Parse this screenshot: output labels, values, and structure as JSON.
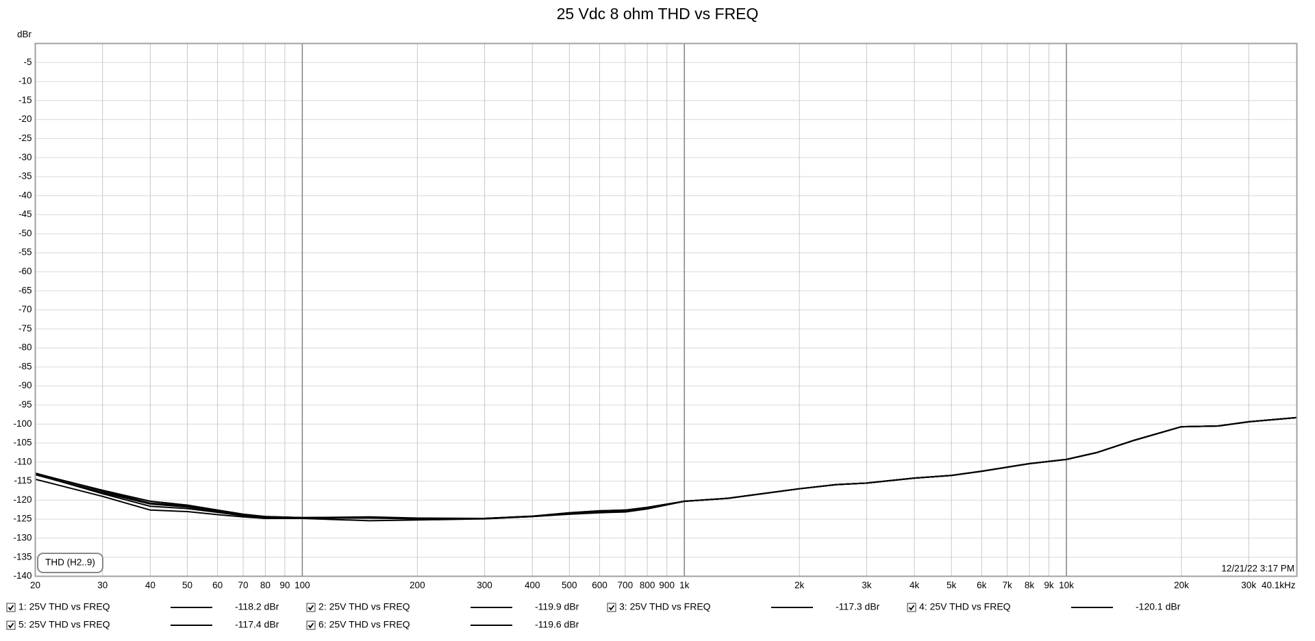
{
  "chart_data": {
    "type": "line",
    "title": "25 Vdc 8 ohm THD vs FREQ",
    "y_label": "dBr",
    "annotation": "THD (H2..9)",
    "timestamp": "12/21/22 3:17 PM",
    "x_scale": "log",
    "grid": true,
    "xlim": [
      20,
      40100
    ],
    "ylim": [
      -140,
      0
    ],
    "xticks": [
      20,
      30,
      40,
      50,
      60,
      70,
      80,
      90,
      100,
      200,
      300,
      400,
      500,
      600,
      700,
      800,
      900,
      {
        "value": 1000,
        "label": "1k"
      },
      {
        "value": 2000,
        "label": "2k"
      },
      {
        "value": 3000,
        "label": "3k"
      },
      {
        "value": 4000,
        "label": "4k"
      },
      {
        "value": 5000,
        "label": "5k"
      },
      {
        "value": 6000,
        "label": "6k"
      },
      {
        "value": 7000,
        "label": "7k"
      },
      {
        "value": 8000,
        "label": "8k"
      },
      {
        "value": 9000,
        "label": "9k"
      },
      {
        "value": 10000,
        "label": "10k"
      },
      {
        "value": 20000,
        "label": "20k"
      },
      {
        "value": 30000,
        "label": "30k"
      },
      {
        "value": 40100,
        "label": "40.1kHz"
      }
    ],
    "yticks": [
      -5,
      -10,
      -15,
      -20,
      -25,
      -30,
      -35,
      -40,
      -45,
      -50,
      -55,
      -60,
      -65,
      -70,
      -75,
      -80,
      -85,
      -90,
      -95,
      -100,
      -105,
      -110,
      -115,
      -120,
      -125,
      -130,
      -135,
      -140
    ],
    "x": [
      20,
      30,
      40,
      50,
      60,
      70,
      80,
      100,
      150,
      200,
      300,
      400,
      500,
      600,
      700,
      800,
      1000,
      1300,
      2000,
      2500,
      3000,
      4000,
      5000,
      6000,
      8000,
      10000,
      12000,
      15000,
      20000,
      25000,
      30000,
      40100
    ],
    "series": [
      {
        "name": "1: 25V THD vs FREQ",
        "readout": "-118.2 dBr",
        "color": "#000000",
        "values": [
          -113,
          -117.4,
          -120.3,
          -121.3,
          -122.6,
          -123.7,
          -124.3,
          -124.6,
          -124.5,
          -124.8,
          -124.8,
          -124.2,
          -123.3,
          -122.8,
          -122.6,
          -121.9,
          -120.3,
          -119.5,
          -117,
          -115.9,
          -115.5,
          -114.2,
          -113.5,
          -112.4,
          -110.4,
          -109.3,
          -107.5,
          -104.3,
          -100.7,
          -100.5,
          -99.4,
          -98.3
        ]
      },
      {
        "name": "2: 25V THD vs FREQ",
        "readout": "-119.9 dBr",
        "color": "#000000",
        "values": [
          -113.3,
          -118,
          -121,
          -121.8,
          -123,
          -124,
          -124.5,
          -124.7,
          -124.7,
          -124.9,
          -124.8,
          -124.3,
          -123.5,
          -123,
          -122.8,
          -122,
          -120.3,
          -119.5,
          -117,
          -115.9,
          -115.5,
          -114.2,
          -113.5,
          -112.4,
          -110.4,
          -109.3,
          -107.5,
          -104.3,
          -100.7,
          -100.5,
          -99.4,
          -98.3
        ]
      },
      {
        "name": "3: 25V THD vs FREQ",
        "readout": "-117.3 dBr",
        "color": "#000000",
        "values": [
          -114.5,
          -119,
          -122.6,
          -123,
          -123.8,
          -124.4,
          -124.8,
          -124.8,
          -125.4,
          -125.2,
          -124.9,
          -124.3,
          -123.6,
          -123.2,
          -123,
          -122.2,
          -120.3,
          -119.5,
          -117,
          -115.9,
          -115.5,
          -114.2,
          -113.5,
          -112.4,
          -110.4,
          -109.3,
          -107.5,
          -104.3,
          -100.7,
          -100.5,
          -99.4,
          -98.3
        ]
      },
      {
        "name": "4: 25V THD vs FREQ",
        "readout": "-120.1 dBr",
        "color": "#000000",
        "values": [
          -112.9,
          -117.6,
          -120.8,
          -121.5,
          -122.8,
          -123.8,
          -124.4,
          -124.6,
          -124.4,
          -124.7,
          -124.8,
          -124.2,
          -123.4,
          -122.9,
          -122.7,
          -121.9,
          -120.3,
          -119.5,
          -117,
          -115.9,
          -115.5,
          -114.2,
          -113.5,
          -112.4,
          -110.4,
          -109.3,
          -107.5,
          -104.3,
          -100.7,
          -100.5,
          -99.4,
          -98.3
        ]
      },
      {
        "name": "5: 25V THD vs FREQ",
        "readout": "-117.4 dBr",
        "color": "#000000",
        "values": [
          -113.2,
          -118.3,
          -121.6,
          -122.2,
          -123.2,
          -124.1,
          -124.6,
          -124.7,
          -124.6,
          -124.8,
          -124.9,
          -124.3,
          -123.7,
          -123.3,
          -123.1,
          -122.3,
          -120.3,
          -119.5,
          -117,
          -115.9,
          -115.5,
          -114.2,
          -113.5,
          -112.4,
          -110.4,
          -109.3,
          -107.5,
          -104.3,
          -100.7,
          -100.5,
          -99.4,
          -98.3
        ]
      },
      {
        "name": "6: 25V THD vs FREQ",
        "readout": "-119.6 dBr",
        "color": "#000000",
        "values": [
          -113,
          -117.4,
          -120.3,
          -121.3,
          -122.6,
          -123.7,
          -124.3,
          -124.6,
          -124.5,
          -124.8,
          -124.8,
          -124.2,
          -123.3,
          -122.8,
          -122.6,
          -121.9,
          -120.3,
          -119.5,
          -117,
          -115.9,
          -115.5,
          -114.2,
          -113.5,
          -112.4,
          -110.4,
          -109.3,
          -107.5,
          -104.3,
          -100.7,
          -100.5,
          -99.4,
          -98.3
        ]
      }
    ]
  }
}
